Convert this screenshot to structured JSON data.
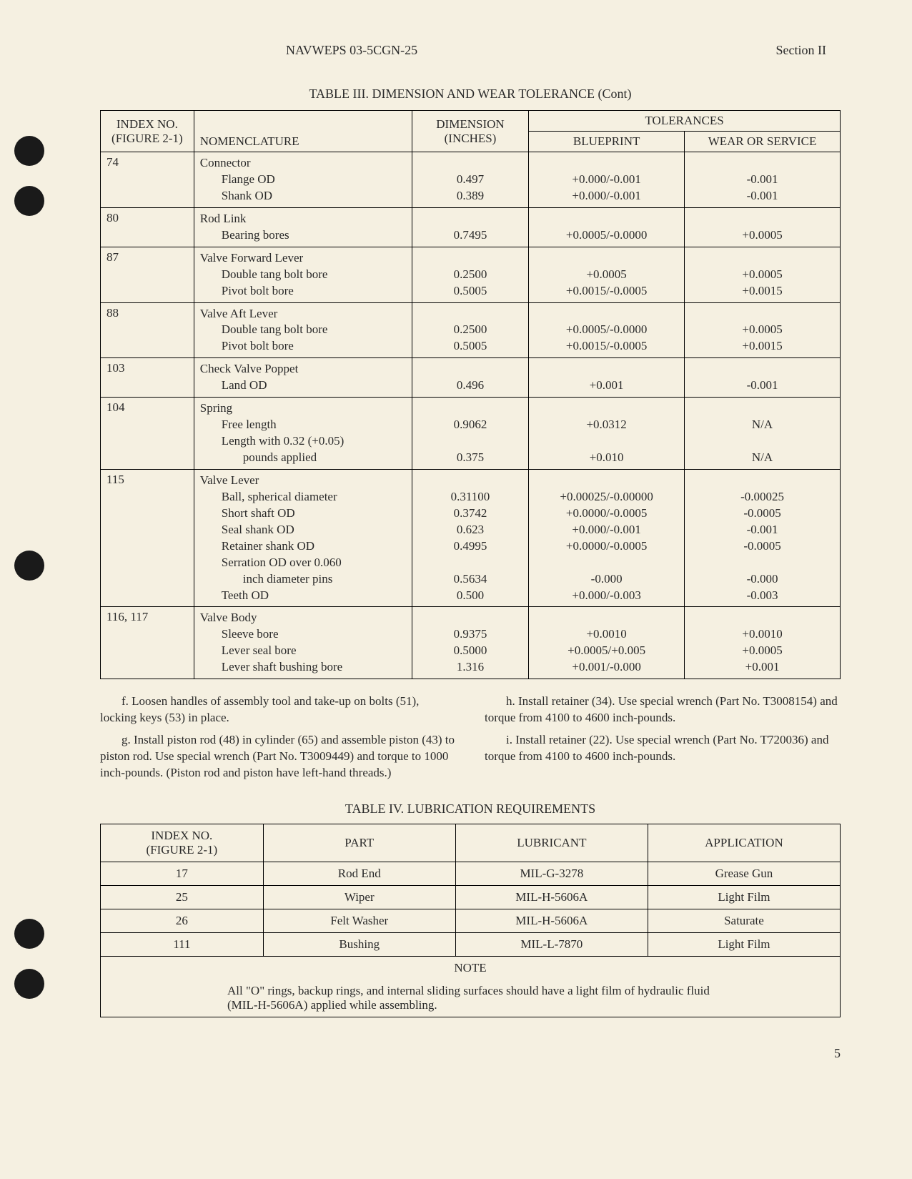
{
  "header": {
    "doc_id": "NAVWEPS 03-5CGN-25",
    "section": "Section II"
  },
  "table3": {
    "caption": "TABLE III.  DIMENSION AND WEAR TOLERANCE (Cont)",
    "headers": {
      "index": "INDEX NO. (FIGURE 2-1)",
      "nomenclature": "NOMENCLATURE",
      "dimension": "DIMENSION (INCHES)",
      "tolerances": "TOLERANCES",
      "blueprint": "BLUEPRINT",
      "wear": "WEAR OR SERVICE"
    },
    "rows": [
      {
        "index": "74",
        "nomen": [
          "Connector",
          "Flange OD",
          "Shank OD"
        ],
        "nomen_indent": [
          0,
          1,
          1
        ],
        "dim": [
          "",
          "0.497",
          "0.389"
        ],
        "bp": [
          "",
          "+0.000/-0.001",
          "+0.000/-0.001"
        ],
        "wear": [
          "",
          "-0.001",
          "-0.001"
        ]
      },
      {
        "index": "80",
        "nomen": [
          "Rod Link",
          "Bearing bores"
        ],
        "nomen_indent": [
          0,
          1
        ],
        "dim": [
          "",
          "0.7495"
        ],
        "bp": [
          "",
          "+0.0005/-0.0000"
        ],
        "wear": [
          "",
          "+0.0005"
        ]
      },
      {
        "index": "87",
        "nomen": [
          "Valve Forward Lever",
          "Double tang bolt bore",
          "Pivot bolt bore"
        ],
        "nomen_indent": [
          0,
          1,
          1
        ],
        "dim": [
          "",
          "0.2500",
          "0.5005"
        ],
        "bp": [
          "",
          "+0.0005",
          "+0.0015/-0.0005"
        ],
        "wear": [
          "",
          "+0.0005",
          "+0.0015"
        ]
      },
      {
        "index": "88",
        "nomen": [
          "Valve Aft Lever",
          "Double tang bolt bore",
          "Pivot bolt bore"
        ],
        "nomen_indent": [
          0,
          1,
          1
        ],
        "dim": [
          "",
          "0.2500",
          "0.5005"
        ],
        "bp": [
          "",
          "+0.0005/-0.0000",
          "+0.0015/-0.0005"
        ],
        "wear": [
          "",
          "+0.0005",
          "+0.0015"
        ]
      },
      {
        "index": "103",
        "nomen": [
          "Check Valve Poppet",
          "Land OD"
        ],
        "nomen_indent": [
          0,
          1
        ],
        "dim": [
          "",
          "0.496"
        ],
        "bp": [
          "",
          "+0.001"
        ],
        "wear": [
          "",
          "-0.001"
        ]
      },
      {
        "index": "104",
        "nomen": [
          "Spring",
          "Free length",
          "Length with 0.32 (+0.05)",
          "pounds applied"
        ],
        "nomen_indent": [
          0,
          1,
          1,
          2
        ],
        "dim": [
          "",
          "0.9062",
          "",
          "0.375"
        ],
        "bp": [
          "",
          "+0.0312",
          "",
          "+0.010"
        ],
        "wear": [
          "",
          "N/A",
          "",
          "N/A"
        ]
      },
      {
        "index": "115",
        "nomen": [
          "Valve Lever",
          "Ball, spherical diameter",
          "Short shaft OD",
          "Seal shank OD",
          "Retainer shank OD",
          "Serration OD over 0.060",
          "inch diameter pins",
          "Teeth OD"
        ],
        "nomen_indent": [
          0,
          1,
          1,
          1,
          1,
          1,
          2,
          1
        ],
        "dim": [
          "",
          "0.31100",
          "0.3742",
          "0.623",
          "0.4995",
          "",
          "0.5634",
          "0.500"
        ],
        "bp": [
          "",
          "+0.00025/-0.00000",
          "+0.0000/-0.0005",
          "+0.000/-0.001",
          "+0.0000/-0.0005",
          "",
          "-0.000",
          "+0.000/-0.003"
        ],
        "wear": [
          "",
          "-0.00025",
          "-0.0005",
          "-0.001",
          "-0.0005",
          "",
          "-0.000",
          "-0.003"
        ]
      },
      {
        "index": "116, 117",
        "nomen": [
          "Valve Body",
          "Sleeve bore",
          "Lever seal bore",
          "Lever shaft bushing bore"
        ],
        "nomen_indent": [
          0,
          1,
          1,
          1
        ],
        "dim": [
          "",
          "0.9375",
          "0.5000",
          "1.316"
        ],
        "bp": [
          "",
          "+0.0010",
          "+0.0005/+0.005",
          "+0.001/-0.000"
        ],
        "wear": [
          "",
          "+0.0010",
          "+0.0005",
          "+0.001"
        ]
      }
    ]
  },
  "body": {
    "left": [
      "f.  Loosen handles of assembly tool and take-up on bolts (51), locking keys (53) in place.",
      "g.  Install piston rod (48) in cylinder (65) and assemble piston (43) to piston rod. Use special wrench (Part No. T3009449) and torque to 1000 inch-pounds. (Piston rod and piston have left-hand threads.)"
    ],
    "right": [
      "h.  Install retainer (34). Use special wrench (Part No. T3008154) and torque from 4100 to 4600 inch-pounds.",
      "i.  Install retainer (22). Use special wrench (Part No. T720036) and torque from 4100 to 4600 inch-pounds."
    ]
  },
  "table4": {
    "caption": "TABLE IV.  LUBRICATION REQUIREMENTS",
    "headers": {
      "index": "INDEX NO. (FIGURE 2-1)",
      "part": "PART",
      "lubricant": "LUBRICANT",
      "application": "APPLICATION"
    },
    "rows": [
      {
        "index": "17",
        "part": "Rod End",
        "lubricant": "MIL-G-3278",
        "application": "Grease Gun"
      },
      {
        "index": "25",
        "part": "Wiper",
        "lubricant": "MIL-H-5606A",
        "application": "Light Film"
      },
      {
        "index": "26",
        "part": "Felt Washer",
        "lubricant": "MIL-H-5606A",
        "application": "Saturate"
      },
      {
        "index": "111",
        "part": "Bushing",
        "lubricant": "MIL-L-7870",
        "application": "Light Film"
      }
    ],
    "note_label": "NOTE",
    "note_text": "All \"O\" rings, backup rings, and internal sliding surfaces should have a light film of hydraulic fluid (MIL-H-5606A) applied while assembling."
  },
  "page_number": "5"
}
